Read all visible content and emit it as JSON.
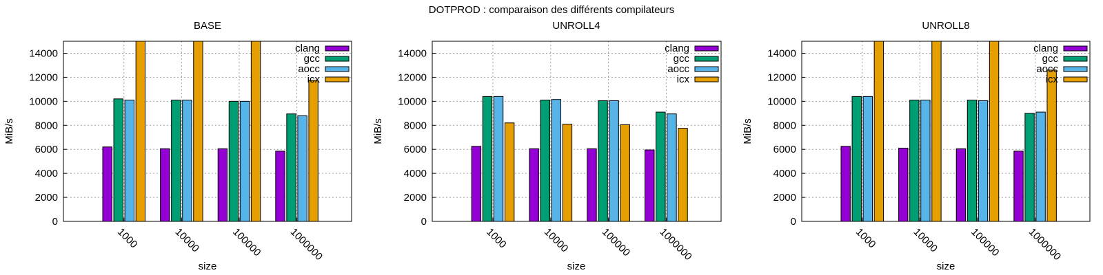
{
  "figure_title": "DOTPROD : comparaison des différents compilateurs",
  "colors": {
    "clang": "#9400d3",
    "gcc": "#009e73",
    "aocc": "#56b4e9",
    "icx": "#e69f00",
    "grid": "#a0a0a0",
    "frame": "#000000"
  },
  "chart_data": [
    {
      "type": "bar",
      "title": "BASE",
      "xlabel": "size",
      "ylabel": "MiB/s",
      "categories": [
        "1000",
        "10000",
        "100000",
        "1000000"
      ],
      "ylim": [
        0,
        15000
      ],
      "yticks": [
        0,
        2000,
        4000,
        6000,
        8000,
        10000,
        12000,
        14000
      ],
      "grid": true,
      "legend_position": "top-right",
      "series": [
        {
          "name": "clang",
          "values": [
            6200,
            6050,
            6050,
            5850
          ]
        },
        {
          "name": "gcc",
          "values": [
            10200,
            10100,
            10000,
            8950
          ]
        },
        {
          "name": "aocc",
          "values": [
            10100,
            10100,
            10000,
            8800
          ]
        },
        {
          "name": "icx",
          "values": [
            15000,
            15000,
            15000,
            11750
          ]
        }
      ]
    },
    {
      "type": "bar",
      "title": "UNROLL4",
      "xlabel": "size",
      "ylabel": "MiB/s",
      "categories": [
        "1000",
        "10000",
        "100000",
        "1000000"
      ],
      "ylim": [
        0,
        15000
      ],
      "yticks": [
        0,
        2000,
        4000,
        6000,
        8000,
        10000,
        12000,
        14000
      ],
      "grid": true,
      "legend_position": "top-right",
      "series": [
        {
          "name": "clang",
          "values": [
            6250,
            6050,
            6050,
            5950
          ]
        },
        {
          "name": "gcc",
          "values": [
            10400,
            10100,
            10050,
            9100
          ]
        },
        {
          "name": "aocc",
          "values": [
            10400,
            10150,
            10050,
            8950
          ]
        },
        {
          "name": "icx",
          "values": [
            8200,
            8100,
            8050,
            7750
          ]
        }
      ]
    },
    {
      "type": "bar",
      "title": "UNROLL8",
      "xlabel": "size",
      "ylabel": "MiB/s",
      "categories": [
        "1000",
        "10000",
        "100000",
        "1000000"
      ],
      "ylim": [
        0,
        15000
      ],
      "yticks": [
        0,
        2000,
        4000,
        6000,
        8000,
        10000,
        12000,
        14000
      ],
      "grid": true,
      "legend_position": "top-right",
      "series": [
        {
          "name": "clang",
          "values": [
            6250,
            6100,
            6050,
            5850
          ]
        },
        {
          "name": "gcc",
          "values": [
            10400,
            10100,
            10100,
            9000
          ]
        },
        {
          "name": "aocc",
          "values": [
            10400,
            10100,
            10050,
            9100
          ]
        },
        {
          "name": "icx",
          "values": [
            15000,
            15000,
            15000,
            12600
          ]
        }
      ]
    }
  ]
}
